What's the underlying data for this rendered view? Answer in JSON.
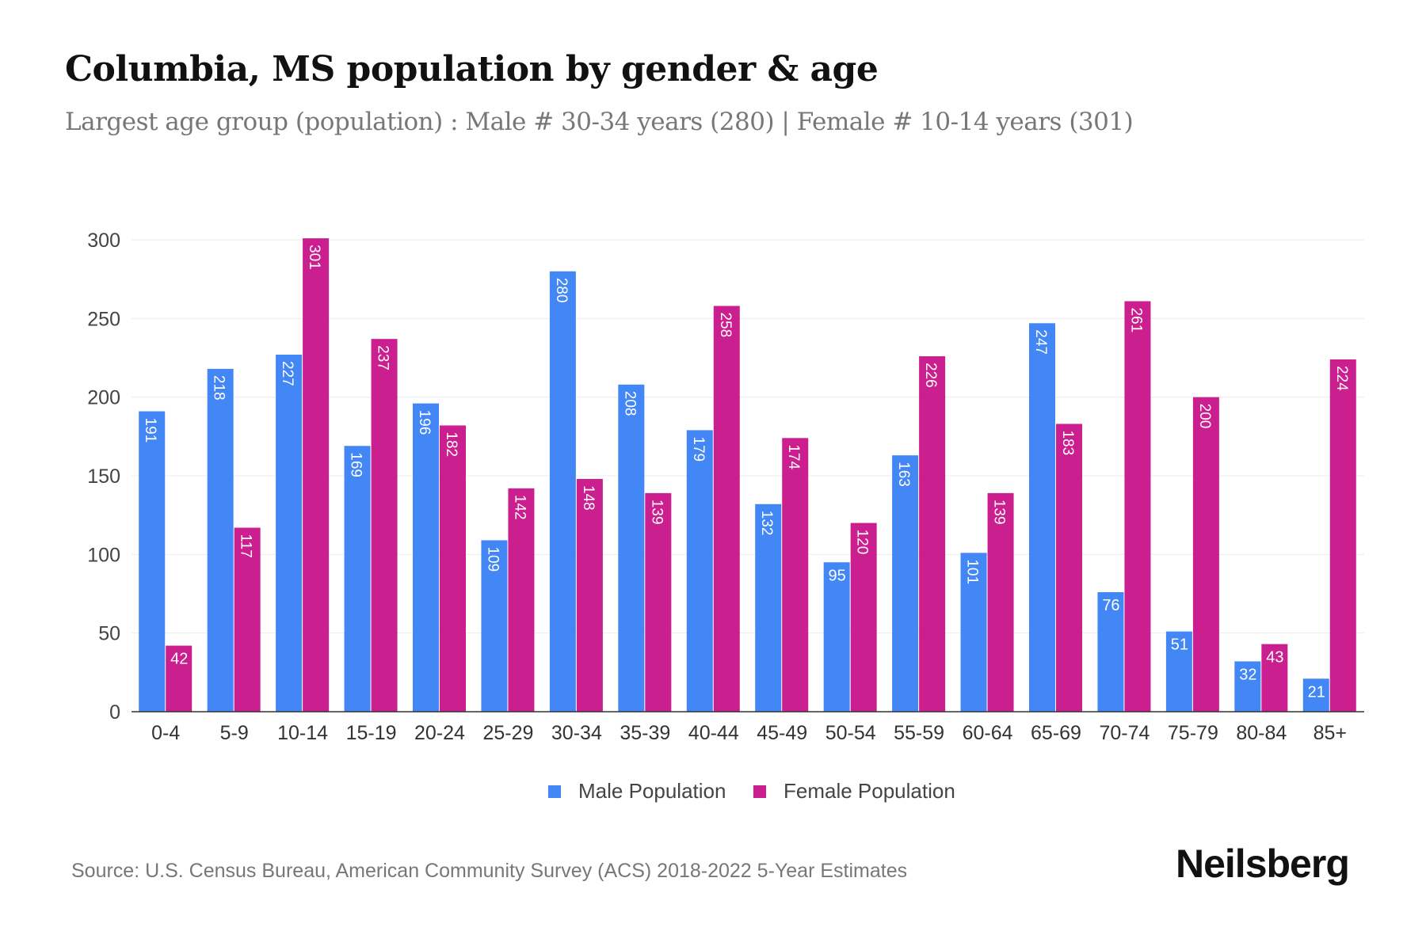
{
  "title": "Columbia, MS population by gender & age",
  "subtitle": "Largest age group (population) : Male # 30-34 years (280) | Female # 10-14 years (301)",
  "source": "Source: U.S. Census Bureau, American Community Survey (ACS) 2018-2022 5-Year Estimates",
  "logo": "Neilsberg",
  "colors": {
    "male": "#4287f5",
    "female": "#cc1f8f"
  },
  "chart_data": {
    "type": "bar",
    "title": "Columbia, MS population by gender & age",
    "xlabel": "",
    "ylabel": "",
    "ylim": [
      0,
      300
    ],
    "yticks": [
      0,
      50,
      100,
      150,
      200,
      250,
      300
    ],
    "grid": true,
    "legend_position": "bottom",
    "categories": [
      "0-4",
      "5-9",
      "10-14",
      "15-19",
      "20-24",
      "25-29",
      "30-34",
      "35-39",
      "40-44",
      "45-49",
      "50-54",
      "55-59",
      "60-64",
      "65-69",
      "70-74",
      "75-79",
      "80-84",
      "85+"
    ],
    "series": [
      {
        "name": "Male Population",
        "values": [
          191,
          218,
          227,
          169,
          196,
          109,
          280,
          208,
          179,
          132,
          95,
          163,
          101,
          247,
          76,
          51,
          32,
          21
        ]
      },
      {
        "name": "Female Population",
        "values": [
          42,
          117,
          301,
          237,
          182,
          142,
          148,
          139,
          258,
          174,
          120,
          226,
          139,
          183,
          261,
          200,
          43,
          224
        ]
      }
    ]
  }
}
